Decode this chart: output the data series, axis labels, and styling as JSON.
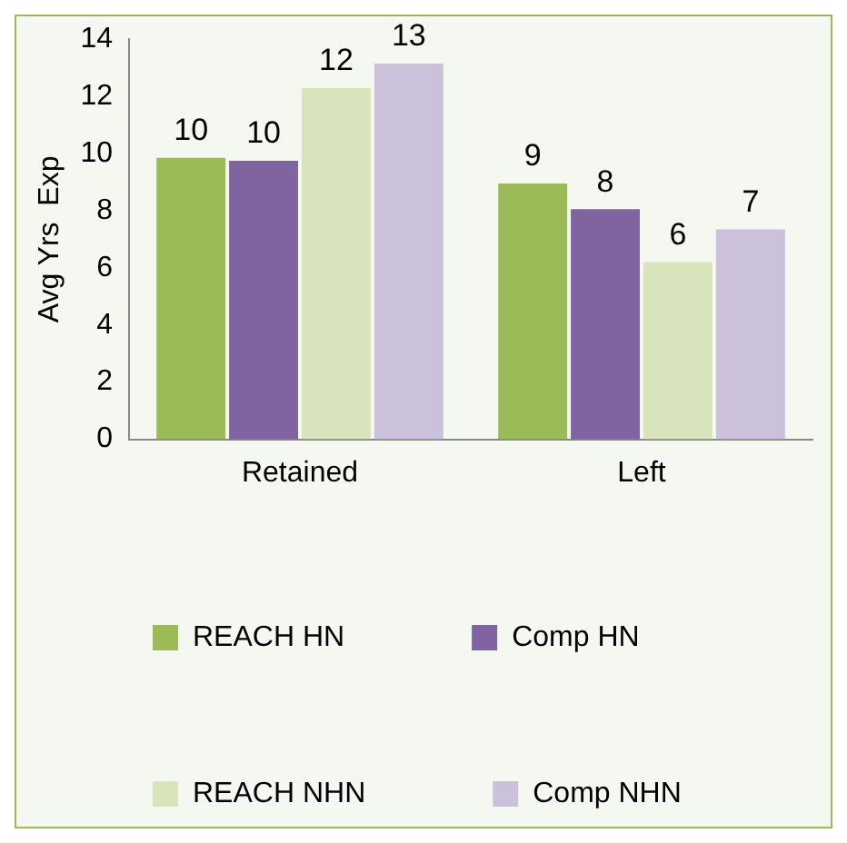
{
  "chart_data": {
    "type": "bar",
    "ylabel": "Avg Yrs  Exp",
    "categories": [
      "Retained",
      "Left"
    ],
    "series": [
      {
        "name": "REACH HN",
        "color": "#9bbb59",
        "values": [
          9.85,
          8.95
        ],
        "value_labels": [
          "10",
          "9"
        ]
      },
      {
        "name": "Comp HN",
        "color": "#8064a2",
        "values": [
          9.75,
          8.05
        ],
        "value_labels": [
          "10",
          "8"
        ]
      },
      {
        "name": "REACH NHN",
        "color": "#d7e4bc",
        "values": [
          12.3,
          6.2
        ],
        "value_labels": [
          "12",
          "6"
        ]
      },
      {
        "name": "Comp NHN",
        "color": "#ccc1da",
        "values": [
          13.15,
          7.35
        ],
        "value_labels": [
          "13",
          "7"
        ]
      }
    ],
    "ylim": [
      0,
      14
    ],
    "yticks": [
      0,
      2,
      4,
      6,
      8,
      10,
      12,
      14
    ],
    "grid": false,
    "legend": "bottom"
  }
}
